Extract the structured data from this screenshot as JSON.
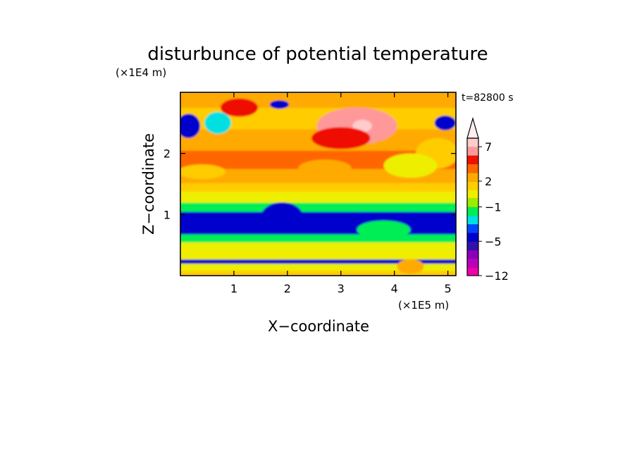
{
  "chart_data": {
    "type": "heatmap",
    "title": "disturbunce of potential temperature",
    "time_label": "t=82800 s",
    "xlabel": "X−coordinate",
    "ylabel": "Z−coordinate",
    "x_unit": "(×1E5 m)",
    "y_unit": "(×1E4 m)",
    "xlim": [
      0,
      5.15
    ],
    "ylim": [
      0,
      3.0
    ],
    "x_ticks": [
      1,
      2,
      3,
      4,
      5
    ],
    "x_tick_labels": [
      "1",
      "2",
      "3",
      "4",
      "5"
    ],
    "y_ticks": [
      1,
      2
    ],
    "y_tick_labels": [
      "1",
      "2"
    ],
    "colorbar": {
      "levels": [
        -12,
        -10,
        -8,
        -6,
        -5,
        -4,
        -3,
        -2,
        -1,
        0,
        1,
        2,
        3,
        4,
        5,
        7,
        9,
        11
      ],
      "tick_labels": [
        {
          "level": -12,
          "text": "−12"
        },
        {
          "level": -5,
          "text": "−5"
        },
        {
          "level": -1,
          "text": "−1"
        },
        {
          "level": 2,
          "text": "2"
        },
        {
          "level": 7,
          "text": "7"
        }
      ],
      "colors": [
        "#ee00aa",
        "#bb00bb",
        "#8800bb",
        "#3311aa",
        "#0000cc",
        "#0044ff",
        "#00e0e0",
        "#00ee55",
        "#99ee00",
        "#eeee00",
        "#ffcc00",
        "#ffaa00",
        "#ff6600",
        "#ee1100",
        "#ff9999",
        "#ffcccc"
      ],
      "extend": "max"
    },
    "field_bands": [
      {
        "z_from": 0.0,
        "z_to": 0.08,
        "value": 1.5
      },
      {
        "z_from": 0.08,
        "z_to": 0.2,
        "value": 0.5
      },
      {
        "z_from": 0.2,
        "z_to": 0.27,
        "value": -4.5
      },
      {
        "z_from": 0.27,
        "z_to": 0.55,
        "value": 0.5
      },
      {
        "z_from": 0.55,
        "z_to": 0.68,
        "value": -1.5
      },
      {
        "z_from": 0.68,
        "z_to": 1.05,
        "value": -4.5
      },
      {
        "z_from": 1.05,
        "z_to": 1.2,
        "value": -1.5
      },
      {
        "z_from": 1.2,
        "z_to": 1.38,
        "value": 0.5
      },
      {
        "z_from": 1.38,
        "z_to": 1.52,
        "value": 1.5
      },
      {
        "z_from": 1.52,
        "z_to": 1.75,
        "value": 2.5
      },
      {
        "z_from": 1.75,
        "z_to": 2.05,
        "value": 3.5
      },
      {
        "z_from": 2.05,
        "z_to": 2.4,
        "value": 2.5
      },
      {
        "z_from": 2.4,
        "z_to": 2.75,
        "value": 1.5
      },
      {
        "z_from": 2.75,
        "z_to": 3.0,
        "value": 2.5
      }
    ],
    "field_blobs": [
      {
        "x": 3.3,
        "z": 2.45,
        "rx": 0.75,
        "rz": 0.3,
        "value": 6
      },
      {
        "x": 3.4,
        "z": 2.45,
        "rx": 0.18,
        "rz": 0.1,
        "value": 8
      },
      {
        "x": 3.0,
        "z": 2.25,
        "rx": 0.55,
        "rz": 0.18,
        "value": 4.5
      },
      {
        "x": 1.1,
        "z": 2.75,
        "rx": 0.35,
        "rz": 0.15,
        "value": 4.5
      },
      {
        "x": 0.15,
        "z": 2.45,
        "rx": 0.22,
        "rz": 0.2,
        "value": -4.5
      },
      {
        "x": 0.7,
        "z": 2.5,
        "rx": 0.25,
        "rz": 0.18,
        "value": -2.5
      },
      {
        "x": 1.85,
        "z": 2.8,
        "rx": 0.18,
        "rz": 0.07,
        "value": -4.5
      },
      {
        "x": 4.95,
        "z": 2.5,
        "rx": 0.2,
        "rz": 0.12,
        "value": -4.5
      },
      {
        "x": 4.8,
        "z": 2.0,
        "rx": 0.4,
        "rz": 0.25,
        "value": 1.5
      },
      {
        "x": 4.3,
        "z": 1.8,
        "rx": 0.5,
        "rz": 0.2,
        "value": 0.5
      },
      {
        "x": 0.4,
        "z": 1.7,
        "rx": 0.45,
        "rz": 0.12,
        "value": 1.5
      },
      {
        "x": 2.7,
        "z": 1.75,
        "rx": 0.5,
        "rz": 0.15,
        "value": 2.5
      },
      {
        "x": 1.9,
        "z": 0.95,
        "rx": 0.4,
        "rz": 0.25,
        "value": -4.5
      },
      {
        "x": 3.8,
        "z": 0.75,
        "rx": 0.5,
        "rz": 0.15,
        "value": -1.5
      },
      {
        "x": 4.3,
        "z": 0.15,
        "rx": 0.25,
        "rz": 0.12,
        "value": 2.5
      }
    ]
  }
}
